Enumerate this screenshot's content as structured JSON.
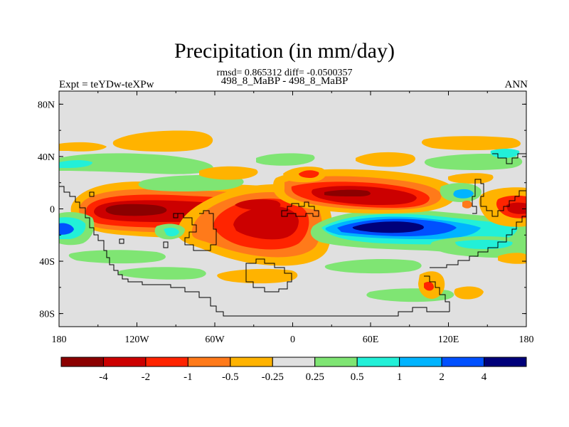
{
  "title": "Precipitation (in mm/day)",
  "stats_line": "rmsd= 0.865312 diff= -0.0500357",
  "case_line": "498_8_MaBP - 498_8_MaBP",
  "experiment_label": "Expt = teYDw-teXPw",
  "season_label": "ANN",
  "lat_ticks": [
    {
      "label": "80N",
      "lat": 80
    },
    {
      "label": "40N",
      "lat": 40
    },
    {
      "label": "0",
      "lat": 0
    },
    {
      "label": "40S",
      "lat": -40
    },
    {
      "label": "80S",
      "lat": -80
    }
  ],
  "lon_ticks": [
    {
      "label": "180",
      "lon": -180
    },
    {
      "label": "120W",
      "lon": -120
    },
    {
      "label": "60W",
      "lon": -60
    },
    {
      "label": "0",
      "lon": 0
    },
    {
      "label": "60E",
      "lon": 60
    },
    {
      "label": "120E",
      "lon": 120
    },
    {
      "label": "180",
      "lon": 180
    }
  ],
  "colorbar": {
    "colors": [
      "#8b0000",
      "#cc0000",
      "#ff2400",
      "#ff7a1a",
      "#ffb300",
      "#e0e0e0",
      "#7fe573",
      "#22f0d8",
      "#00b4ff",
      "#0050ff",
      "#00007a"
    ],
    "labels": [
      "-4",
      "-2",
      "-1",
      "-0.5",
      "-0.25",
      "0.25",
      "0.5",
      "1",
      "2",
      "4"
    ]
  },
  "colors": {
    "background_field": "#e0e0e0",
    "coast": "#000000"
  }
}
